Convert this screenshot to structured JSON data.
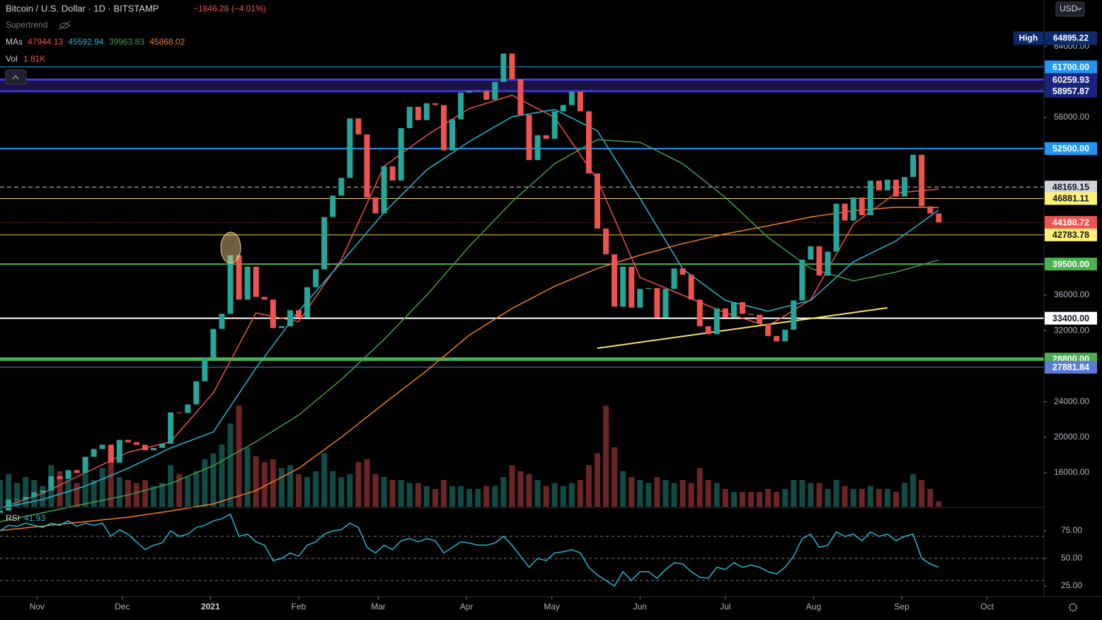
{
  "header": {
    "symbol": "Bitcoin / U.S. Dollar · 1D · BITSTAMP",
    "change": "−1846.28 (−4.01%)",
    "supertrend": "Supertrend",
    "mas": "MAs",
    "vol": "Vol",
    "vol_value": "1.81K",
    "rsi": "RSI",
    "currency": "USD",
    "high": "High"
  },
  "chart_data": {
    "type": "candlestick",
    "colors": {
      "up": "#26a69a",
      "down": "#ef5350"
    },
    "xlim": [
      0,
      367
    ],
    "ylim": [
      12175,
      69227
    ],
    "xticks": [
      {
        "value": 13,
        "label": "Nov"
      },
      {
        "value": 43,
        "label": "Dec"
      },
      {
        "value": 74,
        "label": "2021"
      },
      {
        "value": 105,
        "label": "Feb"
      },
      {
        "value": 133,
        "label": "Mar"
      },
      {
        "value": 164,
        "label": "Apr"
      },
      {
        "value": 194,
        "label": "May"
      },
      {
        "value": 225,
        "label": "Jun"
      },
      {
        "value": 255,
        "label": "Jul"
      },
      {
        "value": 286,
        "label": "Aug"
      },
      {
        "value": 317,
        "label": "Sep"
      },
      {
        "value": 347,
        "label": "Oct"
      }
    ],
    "yticks": [
      {
        "value": 64000,
        "label": "64000.00"
      },
      {
        "value": 56000,
        "label": "56000.00"
      },
      {
        "value": 36000,
        "label": "36000.00"
      },
      {
        "value": 32000,
        "label": "32000.00"
      },
      {
        "value": 24000,
        "label": "24000.00"
      },
      {
        "value": 20000,
        "label": "20000.00"
      },
      {
        "value": 16000,
        "label": "16000.00"
      }
    ],
    "x": [
      0,
      3,
      6,
      9,
      12,
      15,
      18,
      21,
      24,
      27,
      30,
      33,
      36,
      39,
      42,
      45,
      48,
      51,
      54,
      57,
      60,
      63,
      66,
      69,
      72,
      75,
      78,
      81,
      84,
      87,
      90,
      93,
      96,
      99,
      102,
      105,
      108,
      111,
      114,
      117,
      120,
      123,
      126,
      129,
      132,
      135,
      138,
      141,
      144,
      147,
      150,
      153,
      156,
      159,
      162,
      165,
      168,
      171,
      174,
      177,
      180,
      183,
      186,
      189,
      192,
      195,
      198,
      201,
      204,
      207,
      210,
      213,
      216,
      219,
      222,
      225,
      228,
      231,
      234,
      237,
      240,
      243,
      246,
      249,
      252,
      255,
      258,
      261,
      264,
      267,
      270,
      273,
      276,
      279,
      282,
      285,
      288,
      291,
      294,
      297,
      300,
      303,
      306,
      309,
      312,
      315,
      318,
      321,
      324,
      327,
      330
    ],
    "first_open": 11500,
    "values": [
      11750,
      12990,
      13030,
      13270,
      13800,
      14000,
      15600,
      15300,
      16300,
      15970,
      17800,
      18680,
      19160,
      17150,
      19700,
      19440,
      19150,
      18540,
      18800,
      19270,
      22800,
      22730,
      23700,
      26300,
      28900,
      32200,
      33900,
      40500,
      35500,
      39200,
      35800,
      35500,
      32300,
      32500,
      34300,
      33500,
      36900,
      38900,
      44800,
      47200,
      49200,
      55900,
      54100,
      47000,
      45200,
      50500,
      48900,
      54800,
      57200,
      55700,
      57600,
      57400,
      52300,
      55800,
      58800,
      59000,
      59000,
      58000,
      60000,
      63200,
      60300,
      56300,
      51200,
      54000,
      53600,
      56700,
      57400,
      58900,
      56700,
      49700,
      43500,
      40600,
      34700,
      39200,
      34600,
      36700,
      36800,
      33500,
      36700,
      39000,
      38300,
      35500,
      32500,
      31600,
      34500,
      33500,
      35200,
      33900,
      33800,
      32800,
      31400,
      30800,
      32100,
      35400,
      40000,
      41500,
      38200,
      40900,
      46300,
      44400,
      47000,
      45000,
      48900,
      47800,
      49000,
      47100,
      49300,
      51800,
      46000,
      45200,
      44188.72
    ],
    "volume": {
      "values": [
        9000,
        11000,
        8000,
        10000,
        9000,
        7000,
        14000,
        12000,
        9000,
        8000,
        11000,
        9000,
        13000,
        15000,
        10000,
        9000,
        8000,
        9000,
        7000,
        8000,
        14000,
        11000,
        10000,
        12000,
        16000,
        18000,
        21000,
        28000,
        34000,
        20000,
        17000,
        15000,
        16000,
        13000,
        14000,
        11000,
        10000,
        12000,
        18000,
        12000,
        10000,
        11000,
        15000,
        16000,
        11000,
        10000,
        9000,
        9000,
        8000,
        8000,
        7000,
        6000,
        9000,
        7000,
        7000,
        6000,
        6000,
        7000,
        7000,
        10000,
        14000,
        12000,
        11000,
        9000,
        7000,
        8000,
        7000,
        8000,
        9000,
        14000,
        18000,
        34000,
        20000,
        12000,
        10000,
        9000,
        8000,
        10000,
        9000,
        8000,
        9000,
        8000,
        13000,
        9000,
        8000,
        6000,
        5000,
        5000,
        5000,
        5000,
        6000,
        5000,
        6000,
        9000,
        9000,
        8000,
        8000,
        6000,
        9000,
        7000,
        6000,
        6000,
        7000,
        6000,
        6000,
        5000,
        8000,
        11000,
        9000,
        6000,
        1810
      ]
    },
    "moving_averages": [
      {
        "color": "#f0504a",
        "x": [
          0,
          15,
          30,
          45,
          60,
          75,
          90,
          105,
          120,
          135,
          150,
          165,
          180,
          195,
          210,
          225,
          240,
          255,
          270,
          285,
          300,
          315,
          330
        ],
        "values": [
          12000,
          13700,
          16000,
          18300,
          19500,
          25000,
          34000,
          33000,
          40000,
          50500,
          54000,
          57000,
          58500,
          56000,
          49000,
          38000,
          36000,
          34000,
          32500,
          35500,
          44000,
          47500,
          47944.13
        ]
      },
      {
        "color": "#29b6d6",
        "x": [
          0,
          15,
          30,
          45,
          60,
          75,
          90,
          105,
          120,
          135,
          150,
          165,
          180,
          195,
          210,
          225,
          240,
          255,
          270,
          285,
          300,
          315,
          330
        ],
        "values": [
          12000,
          13000,
          14500,
          16500,
          18800,
          20600,
          27800,
          34200,
          39700,
          45300,
          50100,
          53300,
          56080,
          56900,
          54500,
          46900,
          38950,
          35400,
          34200,
          35400,
          39750,
          42100,
          45592.94
        ]
      },
      {
        "color": "#43a047",
        "x": [
          0,
          15,
          30,
          45,
          60,
          75,
          90,
          105,
          120,
          135,
          150,
          165,
          180,
          195,
          210,
          225,
          240,
          255,
          270,
          285,
          300,
          315,
          330
        ],
        "values": [
          10500,
          11500,
          12500,
          13500,
          14800,
          16800,
          19500,
          22500,
          26500,
          31000,
          36000,
          41500,
          46500,
          50800,
          53500,
          53200,
          50800,
          47000,
          42500,
          39000,
          37600,
          38600,
          39963.83
        ]
      },
      {
        "color": "#f57c28",
        "x": [
          0,
          15,
          30,
          45,
          60,
          75,
          90,
          105,
          120,
          135,
          150,
          165,
          180,
          195,
          210,
          225,
          240,
          255,
          270,
          285,
          300,
          315,
          330
        ],
        "values": [
          9500,
          10000,
          10500,
          11000,
          11700,
          12500,
          14000,
          16500,
          20000,
          23800,
          27500,
          31500,
          34500,
          37000,
          39000,
          40500,
          41800,
          42900,
          43800,
          44800,
          45500,
          45900,
          45868.02
        ]
      }
    ],
    "levels": [
      {
        "value": 61700,
        "label": "61700.00",
        "color": "#2196f3",
        "width": 1,
        "dash": "",
        "label_bg": "#2196f3",
        "label_fg": "#ffffff"
      },
      {
        "value": 60259.93,
        "label": "60259.93",
        "color": "#3d3ad6",
        "width": 3,
        "dash": "",
        "label_bg": "#1a237e",
        "label_fg": "#ffffff",
        "band_color": "#1b1246"
      },
      {
        "value": 58957.87,
        "label": "58957.87",
        "color": "#3d3ad6",
        "width": 3,
        "dash": "",
        "label_bg": "#1a237e",
        "label_fg": "#ffffff"
      },
      {
        "value": 52500,
        "label": "52500.00",
        "color": "#2196f3",
        "width": 2,
        "dash": "",
        "label_bg": "#2196f3",
        "label_fg": "#ffffff"
      },
      {
        "value": 48169.15,
        "label": "48169.15",
        "color": "#d1d4dc",
        "width": 1,
        "dash": "6 4",
        "label_bg": "#d1d4dc",
        "label_fg": "#131722"
      },
      {
        "value": 46881.11,
        "label": "46881.11",
        "color": "#f7d358",
        "width": 1,
        "dash": "",
        "label_bg": "#fff176",
        "label_fg": "#131722"
      },
      {
        "value": 44188.72,
        "label": "44188.72",
        "color": "#ef5350",
        "width": 1,
        "dash": "1 3",
        "label_bg": "#ef5350",
        "label_fg": "#ffffff"
      },
      {
        "value": 42783.78,
        "label": "42783.78",
        "color": "#f7d358",
        "width": 1,
        "dash": "",
        "label_bg": "#fff176",
        "label_fg": "#131722"
      },
      {
        "value": 39500,
        "label": "39500.00",
        "color": "#4caf50",
        "width": 2,
        "dash": "",
        "label_bg": "#4caf50",
        "label_fg": "#ffffff"
      },
      {
        "value": 33400,
        "label": "33400.00",
        "color": "#ffffff",
        "width": 2,
        "dash": "",
        "label_bg": "#ffffff",
        "label_fg": "#131722"
      },
      {
        "value": 28800,
        "label": "28800.00",
        "color": "#4caf50",
        "width": 5,
        "dash": "",
        "label_bg": "#4caf50",
        "label_fg": "#ffffff"
      },
      {
        "value": 27881.84,
        "label": "27881.84",
        "color": "#5c7bd6",
        "width": 1,
        "dash": "",
        "label_bg": "#5c7bd6",
        "label_fg": "#ffffff"
      }
    ],
    "high": {
      "value": 64895.22,
      "label_bg": "#0d2b6b"
    },
    "trendline": {
      "color": "#f7e36a",
      "x": [
        210,
        312
      ],
      "values": [
        30020,
        34570
      ]
    },
    "rsi": {
      "color": "#29b6d6",
      "ylim": [
        15.4,
        95.5
      ],
      "levels": [
        70,
        50,
        30
      ],
      "yticks": [
        {
          "value": 75,
          "label": "75.00"
        },
        {
          "value": 50,
          "label": "50.00"
        },
        {
          "value": 25,
          "label": "25.00"
        }
      ],
      "values": [
        75,
        80,
        79,
        82,
        80,
        78,
        82,
        80,
        84,
        79,
        82,
        80,
        82,
        70,
        76,
        72,
        65,
        58,
        62,
        64,
        75,
        70,
        72,
        78,
        80,
        84,
        86,
        90,
        70,
        72,
        65,
        62,
        48,
        50,
        55,
        52,
        62,
        65,
        72,
        75,
        76,
        82,
        78,
        60,
        55,
        62,
        58,
        66,
        68,
        65,
        68,
        66,
        55,
        60,
        65,
        64,
        62,
        62,
        64,
        70,
        62,
        52,
        42,
        50,
        48,
        55,
        56,
        58,
        55,
        42,
        35,
        30,
        25,
        38,
        30,
        38,
        38,
        32,
        40,
        46,
        45,
        38,
        33,
        32,
        42,
        40,
        46,
        42,
        44,
        42,
        38,
        36,
        42,
        52,
        68,
        72,
        60,
        62,
        74,
        70,
        72,
        66,
        74,
        70,
        72,
        66,
        70,
        72,
        50,
        45,
        41.93
      ]
    }
  }
}
